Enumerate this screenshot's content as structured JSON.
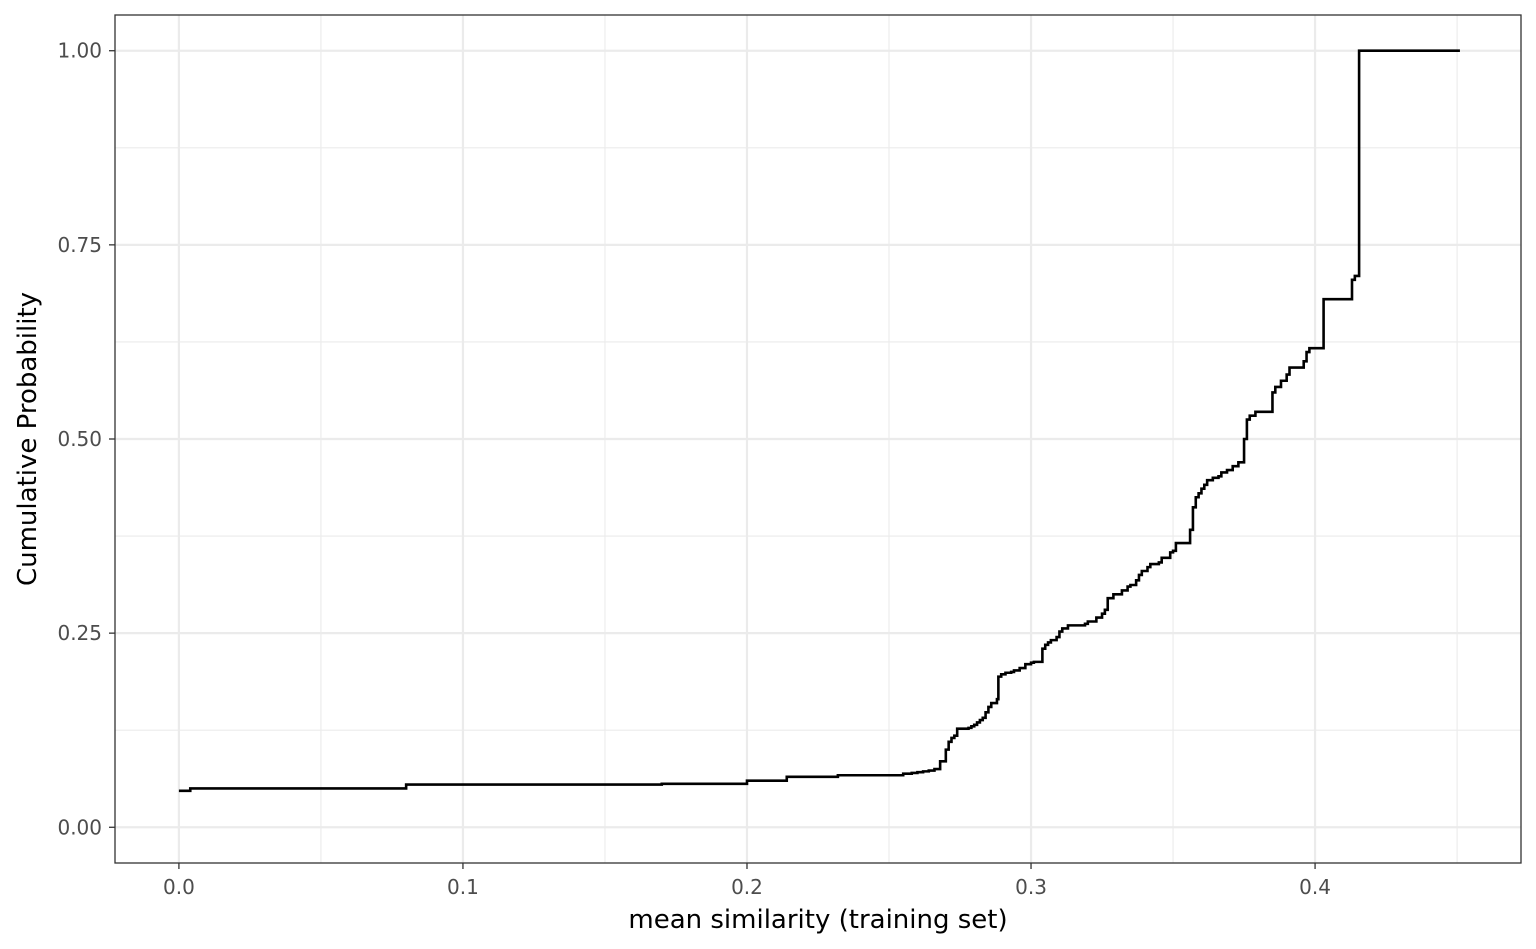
{
  "chart_data": {
    "type": "line",
    "step": true,
    "title": "",
    "xlabel": "mean similarity (training set)",
    "ylabel": "Cumulative Probability",
    "xlim": [
      -0.0225,
      0.4725
    ],
    "ylim": [
      -0.046,
      1.046
    ],
    "x_ticks": [
      0.0,
      0.1,
      0.2,
      0.3,
      0.4
    ],
    "x_tick_labels": [
      "0.0",
      "0.1",
      "0.2",
      "0.3",
      "0.4"
    ],
    "y_ticks": [
      0.0,
      0.25,
      0.5,
      0.75,
      1.0
    ],
    "y_tick_labels": [
      "0.00",
      "0.25",
      "0.50",
      "0.75",
      "1.00"
    ],
    "grid": true,
    "colors": {
      "line": "#000000",
      "grid": "#ebebeb",
      "panel_border": "#333333",
      "background": "#ffffff"
    },
    "series": [
      {
        "x": [
          0.0,
          0.004,
          0.079,
          0.08,
          0.14,
          0.17,
          0.197,
          0.2,
          0.212,
          0.214,
          0.231,
          0.232,
          0.25,
          0.255,
          0.258,
          0.26,
          0.262,
          0.264,
          0.266,
          0.268,
          0.27,
          0.271,
          0.272,
          0.273,
          0.274,
          0.275,
          0.276,
          0.277,
          0.278,
          0.279,
          0.28,
          0.281,
          0.282,
          0.283,
          0.284,
          0.285,
          0.286,
          0.287,
          0.288,
          0.2885,
          0.2895,
          0.291,
          0.293,
          0.294,
          0.296,
          0.298,
          0.2985,
          0.3,
          0.301,
          0.304,
          0.305,
          0.306,
          0.307,
          0.309,
          0.31,
          0.311,
          0.313,
          0.316,
          0.317,
          0.319,
          0.32,
          0.323,
          0.325,
          0.326,
          0.327,
          0.329,
          0.332,
          0.334,
          0.335,
          0.337,
          0.338,
          0.339,
          0.341,
          0.342,
          0.345,
          0.346,
          0.349,
          0.35,
          0.351,
          0.356,
          0.357,
          0.358,
          0.359,
          0.36,
          0.361,
          0.362,
          0.364,
          0.366,
          0.367,
          0.369,
          0.371,
          0.373,
          0.375,
          0.376,
          0.377,
          0.379,
          0.38,
          0.385,
          0.386,
          0.388,
          0.39,
          0.391,
          0.392,
          0.396,
          0.397,
          0.398,
          0.4,
          0.403,
          0.413,
          0.414,
          0.4155,
          0.451
        ],
        "y": [
          0.047,
          0.05,
          0.05,
          0.055,
          0.055,
          0.056,
          0.056,
          0.06,
          0.06,
          0.065,
          0.065,
          0.067,
          0.067,
          0.069,
          0.07,
          0.071,
          0.072,
          0.073,
          0.075,
          0.085,
          0.1,
          0.11,
          0.115,
          0.118,
          0.127,
          0.127,
          0.127,
          0.127,
          0.128,
          0.13,
          0.132,
          0.135,
          0.138,
          0.141,
          0.148,
          0.155,
          0.16,
          0.16,
          0.165,
          0.194,
          0.197,
          0.199,
          0.2,
          0.202,
          0.205,
          0.21,
          0.21,
          0.212,
          0.213,
          0.23,
          0.235,
          0.238,
          0.241,
          0.245,
          0.252,
          0.256,
          0.26,
          0.26,
          0.26,
          0.262,
          0.265,
          0.27,
          0.275,
          0.28,
          0.295,
          0.3,
          0.305,
          0.31,
          0.312,
          0.318,
          0.325,
          0.33,
          0.335,
          0.339,
          0.341,
          0.347,
          0.354,
          0.356,
          0.366,
          0.383,
          0.412,
          0.425,
          0.43,
          0.436,
          0.441,
          0.447,
          0.45,
          0.452,
          0.457,
          0.46,
          0.465,
          0.47,
          0.5,
          0.525,
          0.53,
          0.535,
          0.535,
          0.56,
          0.567,
          0.575,
          0.583,
          0.592,
          0.592,
          0.6,
          0.612,
          0.617,
          0.617,
          0.68,
          0.705,
          0.71,
          1.0,
          1.0
        ]
      }
    ]
  }
}
